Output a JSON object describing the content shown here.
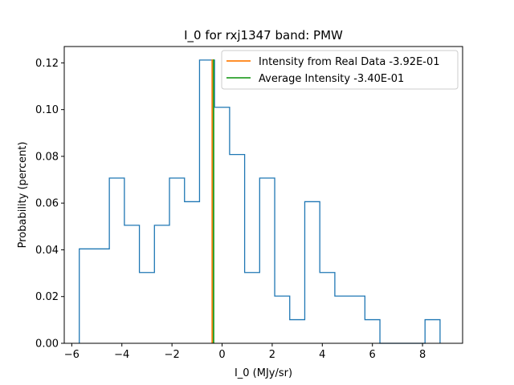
{
  "chart_data": {
    "type": "histogram",
    "title": "I_0 for rxj1347 band: PMW",
    "xlabel": "I_0 (MJy/sr)",
    "ylabel": "Probability (percent)",
    "xlim": [
      -6.3,
      9.6
    ],
    "ylim": [
      0.0,
      0.127
    ],
    "xticks": [
      -6,
      -4,
      -2,
      0,
      2,
      4,
      6,
      8
    ],
    "yticks": [
      0.0,
      0.02,
      0.04,
      0.06,
      0.08,
      0.1,
      0.12
    ],
    "xtick_labels": [
      "−6",
      "−4",
      "−2",
      "0",
      "2",
      "4",
      "6",
      "8"
    ],
    "ytick_labels": [
      "0.00",
      "0.02",
      "0.04",
      "0.06",
      "0.08",
      "0.10",
      "0.12"
    ],
    "bin_edges": [
      -5.7,
      -5.1,
      -4.5,
      -3.9,
      -3.3,
      -2.7,
      -2.1,
      -1.5,
      -0.9,
      -0.3,
      0.3,
      0.9,
      1.5,
      2.1,
      2.7,
      3.3,
      3.9,
      4.5,
      5.1,
      5.7,
      6.3,
      6.9,
      7.5,
      8.1,
      8.7
    ],
    "counts": [
      0.0404,
      0.0404,
      0.0707,
      0.0505,
      0.0303,
      0.0505,
      0.0707,
      0.0606,
      0.1212,
      0.101,
      0.0808,
      0.0303,
      0.0707,
      0.0202,
      0.0101,
      0.0606,
      0.0303,
      0.0202,
      0.0202,
      0.0101,
      0.0,
      0.0,
      0.0,
      0.0101
    ],
    "histogram_color": "#1f77b4",
    "vlines": [
      {
        "name": "Intensity from Real Data -3.92E-01",
        "x": -0.392,
        "color": "#ff7f0e"
      },
      {
        "name": "Average Intensity -3.40E-01",
        "x": -0.34,
        "color": "#2ca02c"
      }
    ],
    "legend": "top-right",
    "grid": false
  }
}
